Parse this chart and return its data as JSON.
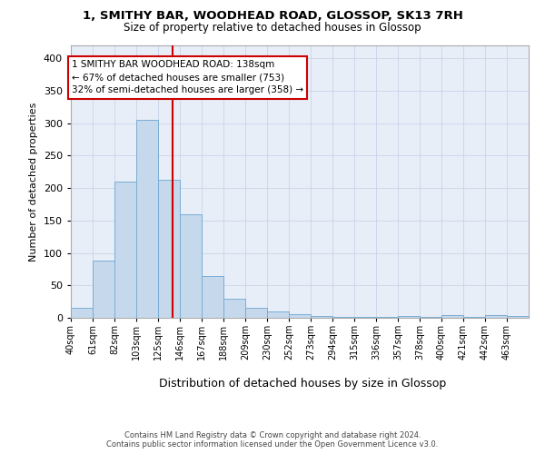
{
  "title_line1": "1, SMITHY BAR, WOODHEAD ROAD, GLOSSOP, SK13 7RH",
  "title_line2": "Size of property relative to detached houses in Glossop",
  "xlabel": "Distribution of detached houses by size in Glossop",
  "ylabel": "Number of detached properties",
  "footer_line1": "Contains HM Land Registry data © Crown copyright and database right 2024.",
  "footer_line2": "Contains public sector information licensed under the Open Government Licence v3.0.",
  "bin_labels": [
    "40sqm",
    "61sqm",
    "82sqm",
    "103sqm",
    "125sqm",
    "146sqm",
    "167sqm",
    "188sqm",
    "209sqm",
    "230sqm",
    "252sqm",
    "273sqm",
    "294sqm",
    "315sqm",
    "336sqm",
    "357sqm",
    "378sqm",
    "400sqm",
    "421sqm",
    "442sqm",
    "463sqm"
  ],
  "bar_heights": [
    15,
    88,
    210,
    305,
    213,
    160,
    65,
    30,
    16,
    10,
    6,
    3,
    2,
    1,
    1,
    3,
    1,
    4,
    1,
    4,
    3
  ],
  "bar_color": "#c5d8ec",
  "bar_edge_color": "#7aaed4",
  "grid_color": "#c8d4e8",
  "background_color": "#e8eef8",
  "vline_color": "#cc0000",
  "annotation_text": "1 SMITHY BAR WOODHEAD ROAD: 138sqm\n← 67% of detached houses are smaller (753)\n32% of semi-detached houses are larger (358) →",
  "annotation_box_color": "#ffffff",
  "annotation_box_edge": "#cc0000",
  "ylim": [
    0,
    420
  ],
  "bin_width": 21,
  "num_bins": 21,
  "property_sqm": 138,
  "yticks": [
    0,
    50,
    100,
    150,
    200,
    250,
    300,
    350,
    400
  ]
}
